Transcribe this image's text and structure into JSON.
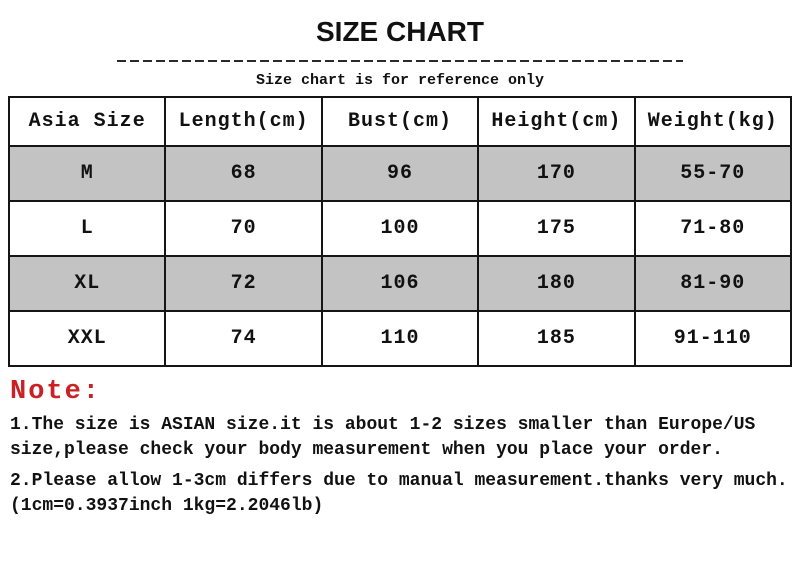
{
  "title": "SIZE CHART",
  "subtitle": "Size chart is for reference only",
  "table": {
    "headers": [
      "Asia Size",
      "Length(cm)",
      "Bust(cm)",
      "Height(cm)",
      "Weight(kg)"
    ],
    "rows": [
      [
        "M",
        "68",
        "96",
        "170",
        "55-70"
      ],
      [
        "L",
        "70",
        "100",
        "175",
        "71-80"
      ],
      [
        "XL",
        "72",
        "106",
        "180",
        "81-90"
      ],
      [
        "XXL",
        "74",
        "110",
        "185",
        "91-110"
      ]
    ]
  },
  "note": {
    "label": "Note:",
    "items": [
      "1.The size is ASIAN size.it is about 1-2 sizes smaller than Europe/US size,please check your body measurement when you place your order.",
      "2.Please allow 1-3cm differs due to manual measurement.thanks very much.(1cm=0.3937inch 1kg=2.2046lb)"
    ]
  },
  "colors": {
    "stripe_gray": "#c3c3c3",
    "note_red": "#cb2026",
    "border_black": "#151515",
    "background": "#ffffff"
  }
}
